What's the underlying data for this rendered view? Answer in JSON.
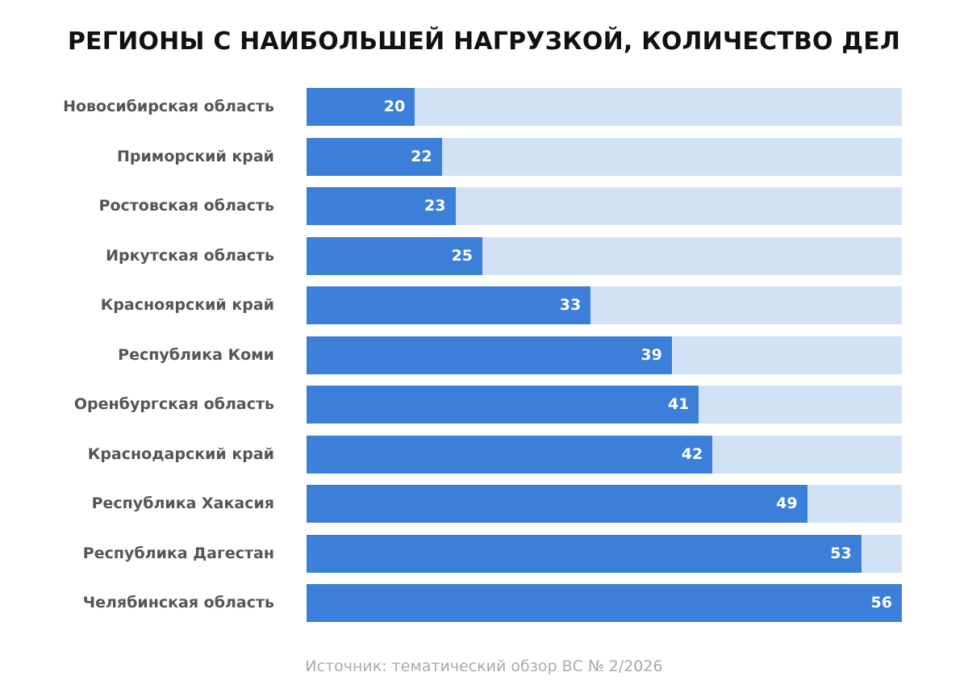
{
  "chart_data": {
    "type": "bar",
    "orientation": "horizontal",
    "title": "РЕГИОНЫ С НАИБОЛЬШЕЙ НАГРУЗКОЙ, КОЛИЧЕСТВО ДЕЛ",
    "categories": [
      "Новосибирская область",
      "Приморский край",
      "Ростовская область",
      "Иркутская область",
      "Красноярский край",
      "Республика Коми",
      "Оренбургская область",
      "Краснодарский край",
      "Республика Хакасия",
      "Республика Дагестан",
      "Челябинская область"
    ],
    "values": [
      20,
      22,
      23,
      25,
      33,
      39,
      41,
      42,
      49,
      53,
      56
    ],
    "xlim": [
      12,
      56
    ],
    "xlabel": "",
    "ylabel": "",
    "grid": false,
    "colors": {
      "bar": "#3c7fd8",
      "track": "#d1e2f6"
    }
  },
  "source": "Источник: тематический обзор ВС № 2/2026"
}
